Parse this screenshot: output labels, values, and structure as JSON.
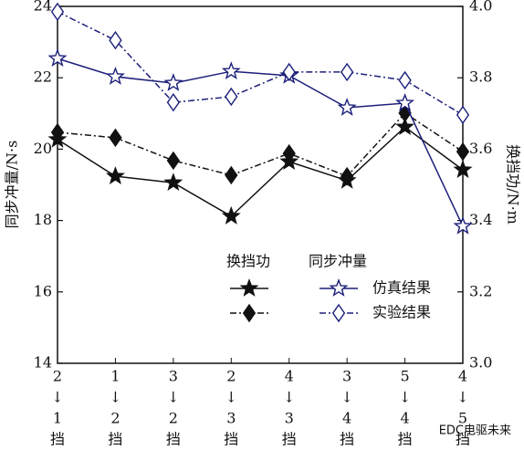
{
  "chart_data": {
    "type": "line",
    "y_label": "同步冲量/N·s",
    "y2_label": "换挡功/N·m",
    "categories": [
      "2↓1挡",
      "1↓2挡",
      "3↓2挡",
      "2↓3挡",
      "4↓3挡",
      "3↓4挡",
      "5↓4挡",
      "4↓5挡"
    ],
    "ylim": [
      14,
      24
    ],
    "yticks": [
      14,
      16,
      18,
      20,
      22,
      24
    ],
    "y2lim": [
      3.0,
      4.0
    ],
    "y2ticks": [
      {
        "value": 3.0,
        "label": "3.0"
      },
      3.2,
      3.4,
      3.6,
      3.8,
      {
        "value": 4.0,
        "label": "4.0"
      }
    ],
    "legend": {
      "columns": [
        "换挡功",
        "同步冲量"
      ],
      "rows": [
        "仿真结果",
        "实验结果"
      ]
    },
    "series": [
      {
        "axis": "y2",
        "color": "#111111",
        "marker": "star",
        "filled": true,
        "dash": "solid",
        "values": [
          3.627,
          3.524,
          3.506,
          3.412,
          3.565,
          3.512,
          3.662,
          3.542
        ]
      },
      {
        "axis": "y2",
        "color": "#111111",
        "marker": "diamond",
        "filled": true,
        "dash": "dashdot",
        "values": [
          3.647,
          3.632,
          3.568,
          3.527,
          3.588,
          3.524,
          3.701,
          3.593
        ]
      },
      {
        "axis": "y",
        "color": "#1c1f7a",
        "marker": "star",
        "filled": false,
        "dash": "solid",
        "values": [
          22.54,
          22.03,
          21.85,
          22.18,
          22.06,
          21.16,
          21.29,
          17.84
        ]
      },
      {
        "axis": "y",
        "color": "#1c1f7a",
        "marker": "diamond",
        "filled": false,
        "dash": "dashdot",
        "values": [
          23.85,
          23.05,
          21.31,
          21.47,
          22.16,
          22.16,
          21.93,
          20.96
        ]
      }
    ],
    "watermark": "EDC电驱未来"
  }
}
